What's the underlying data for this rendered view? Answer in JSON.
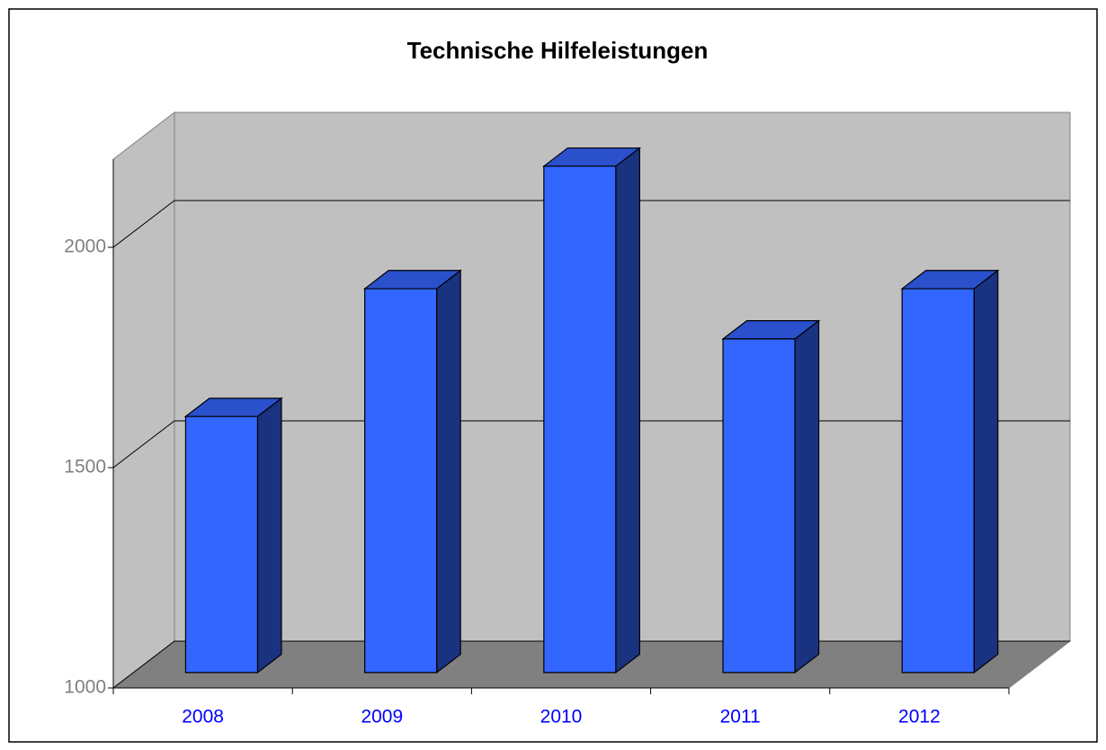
{
  "chart_data": {
    "type": "bar3d",
    "title": "Technische Hilfeleistungen",
    "categories": [
      "2008",
      "2009",
      "2010",
      "2011",
      "2012"
    ],
    "values": [
      1581,
      1871,
      2149,
      1757,
      1871
    ],
    "color": "#3366ff",
    "ylim": [
      1000,
      2200
    ],
    "yticks": [
      1000,
      1500,
      2000
    ],
    "grid": true
  }
}
